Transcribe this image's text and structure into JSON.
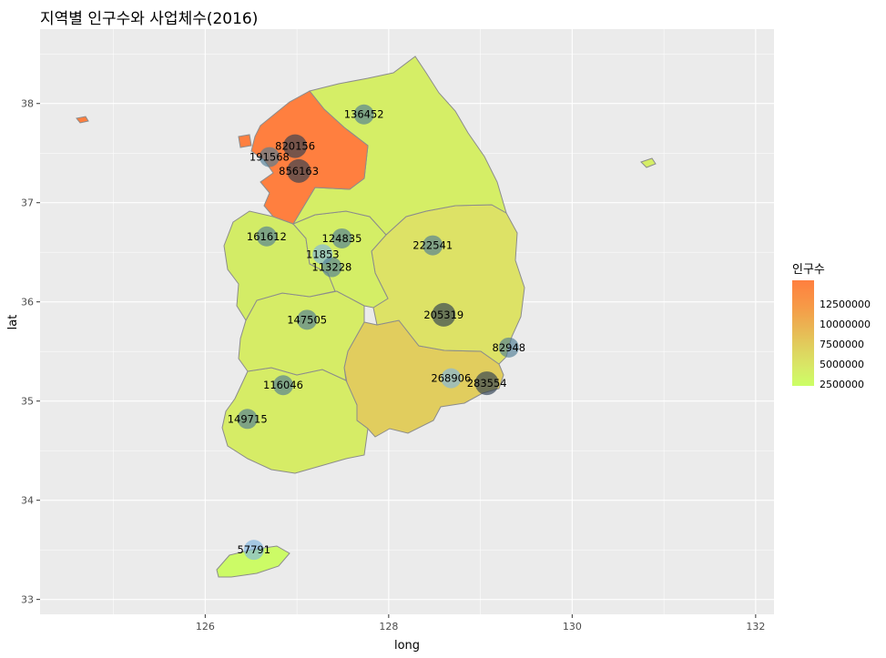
{
  "title": "지역별 인구수와 사업체수(2016)",
  "axes": {
    "x_title": "long",
    "y_title": "lat",
    "x_ticks": [
      "126",
      "128",
      "130",
      "132"
    ],
    "y_ticks": [
      "33",
      "34",
      "35",
      "36",
      "37",
      "38"
    ]
  },
  "legend": {
    "title": "인구수",
    "labels": [
      "12500000",
      "10000000",
      "7500000",
      "5000000",
      "2500000"
    ]
  },
  "colors": {
    "panel_bg": "#ebebeb",
    "grid": "#ffffff",
    "border": "#8c8c8c",
    "low": "#ccff66",
    "high": "#ff7f3f",
    "bubble_light": "#7fb6e0",
    "bubble_dark": "#2c3e50"
  },
  "chart_data": {
    "type": "map",
    "region": "South Korea provinces",
    "xlim": [
      124.2,
      132.2
    ],
    "ylim": [
      32.85,
      38.75
    ],
    "regions": [
      {
        "name": "Gyeonggi-do",
        "fill": "#ff7f3f"
      },
      {
        "name": "Gangwon-do",
        "fill": "#d5ee66"
      },
      {
        "name": "Chungcheongbuk-do",
        "fill": "#d4ee66"
      },
      {
        "name": "Chungcheongnam-do",
        "fill": "#d3ec66"
      },
      {
        "name": "Gyeongsangbuk-do",
        "fill": "#dde266"
      },
      {
        "name": "Jeollabuk-do",
        "fill": "#d6ec66"
      },
      {
        "name": "Jeollanam-do",
        "fill": "#d6ec66"
      },
      {
        "name": "Gyeongsangnam-do",
        "fill": "#e1cd5e"
      },
      {
        "name": "Jeju-do",
        "fill": "#ccfb66"
      }
    ],
    "points": [
      {
        "label": "136452",
        "long": 127.73,
        "lat": 37.89,
        "shade": "mid"
      },
      {
        "label": "820156",
        "long": 126.98,
        "lat": 37.57,
        "shade": "dark"
      },
      {
        "label": "191568",
        "long": 126.7,
        "lat": 37.46,
        "shade": "mid"
      },
      {
        "label": "856163",
        "long": 127.02,
        "lat": 37.32,
        "shade": "dark"
      },
      {
        "label": "161612",
        "long": 126.67,
        "lat": 36.66,
        "shade": "mid"
      },
      {
        "label": "124835",
        "long": 127.49,
        "lat": 36.64,
        "shade": "mid"
      },
      {
        "label": "11853",
        "long": 127.28,
        "lat": 36.48,
        "shade": "light"
      },
      {
        "label": "113228",
        "long": 127.38,
        "lat": 36.35,
        "shade": "mid"
      },
      {
        "label": "222541",
        "long": 128.48,
        "lat": 36.57,
        "shade": "mid"
      },
      {
        "label": "205319",
        "long": 128.6,
        "lat": 35.87,
        "shade": "dark"
      },
      {
        "label": "147505",
        "long": 127.11,
        "lat": 35.82,
        "shade": "mid"
      },
      {
        "label": "82948",
        "long": 129.31,
        "lat": 35.54,
        "shade": "mid"
      },
      {
        "label": "268906",
        "long": 128.68,
        "lat": 35.23,
        "shade": "light"
      },
      {
        "label": "283554",
        "long": 129.07,
        "lat": 35.18,
        "shade": "dark"
      },
      {
        "label": "116046",
        "long": 126.85,
        "lat": 35.16,
        "shade": "mid"
      },
      {
        "label": "149715",
        "long": 126.46,
        "lat": 34.82,
        "shade": "mid"
      },
      {
        "label": "57791",
        "long": 126.53,
        "lat": 33.5,
        "shade": "light"
      }
    ]
  }
}
